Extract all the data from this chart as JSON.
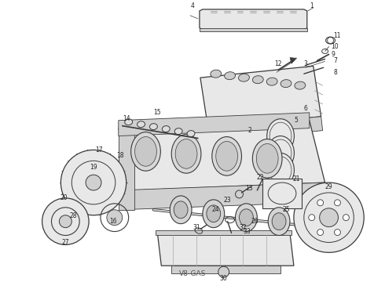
{
  "background_color": "#ffffff",
  "label": "V8-GAS",
  "label_fontsize": 6.5,
  "lc": "#222222",
  "lfs": 5.5,
  "figw": 4.9,
  "figh": 3.6,
  "dpi": 100
}
